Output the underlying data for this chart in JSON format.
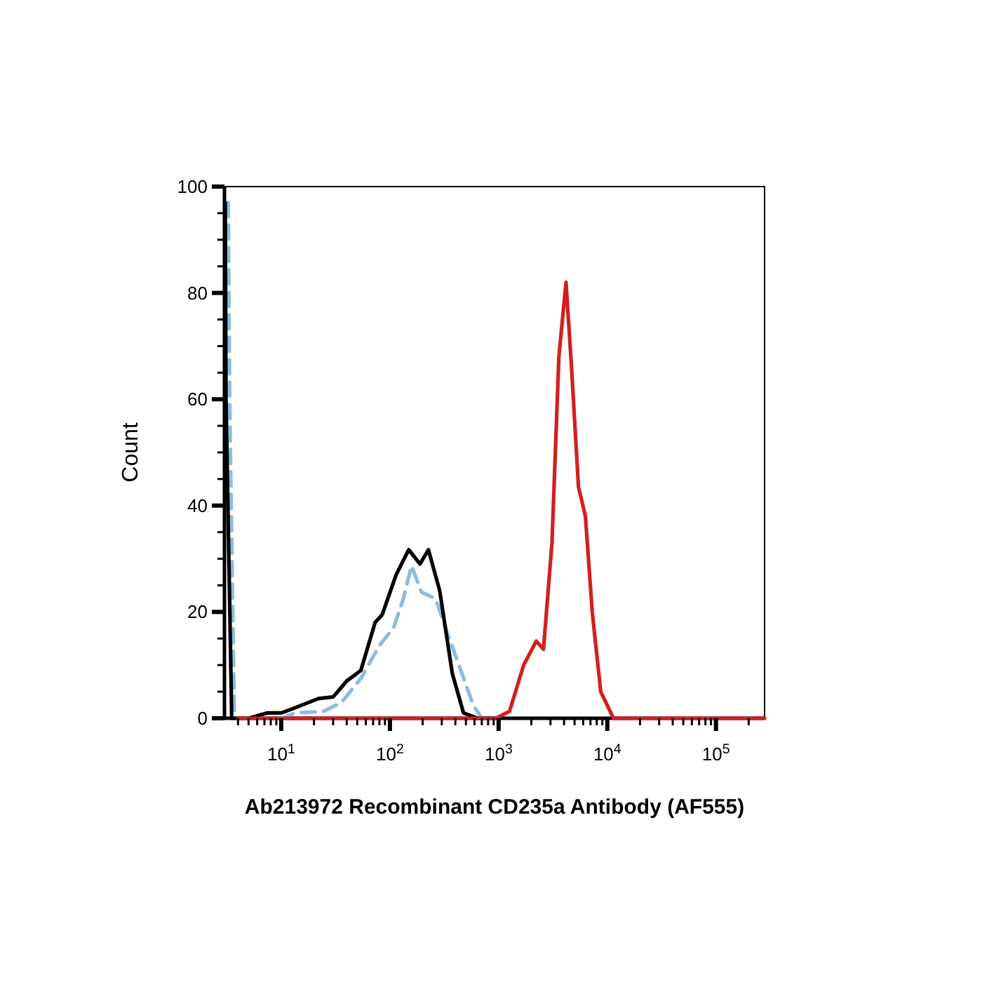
{
  "chart_data": {
    "type": "line",
    "xlabel": "Ab213972 Recombinant CD235a Antibody (AF555)",
    "ylabel": "Count",
    "log": "x",
    "grid": false,
    "marker": "none",
    "xlim": [
      3,
      280000
    ],
    "ylim": [
      0,
      100
    ],
    "xticks": [
      {
        "value": 4,
        "label": null
      },
      {
        "value": 5,
        "label": null
      },
      {
        "value": 6,
        "label": null
      },
      {
        "value": 7,
        "label": null
      },
      {
        "value": 8,
        "label": null
      },
      {
        "value": 9,
        "label": null
      },
      {
        "value": 10,
        "label": "10$^{1}$"
      },
      {
        "value": 20,
        "label": null
      },
      {
        "value": 30,
        "label": null
      },
      {
        "value": 40,
        "label": null
      },
      {
        "value": 50,
        "label": null
      },
      {
        "value": 60,
        "label": null
      },
      {
        "value": 70,
        "label": null
      },
      {
        "value": 80,
        "label": null
      },
      {
        "value": 90,
        "label": null
      },
      {
        "value": 100,
        "label": "10$^{2}$"
      },
      {
        "value": 200,
        "label": null
      },
      {
        "value": 300,
        "label": null
      },
      {
        "value": 400,
        "label": null
      },
      {
        "value": 500,
        "label": null
      },
      {
        "value": 600,
        "label": null
      },
      {
        "value": 700,
        "label": null
      },
      {
        "value": 800,
        "label": null
      },
      {
        "value": 900,
        "label": null
      },
      {
        "value": 1000,
        "label": "10$^{3}$"
      },
      {
        "value": 2000,
        "label": null
      },
      {
        "value": 3000,
        "label": null
      },
      {
        "value": 4000,
        "label": null
      },
      {
        "value": 5000,
        "label": null
      },
      {
        "value": 6000,
        "label": null
      },
      {
        "value": 7000,
        "label": null
      },
      {
        "value": 8000,
        "label": null
      },
      {
        "value": 9000,
        "label": null
      },
      {
        "value": 10000,
        "label": "10$^{4}$"
      },
      {
        "value": 20000,
        "label": null
      },
      {
        "value": 30000,
        "label": null
      },
      {
        "value": 40000,
        "label": null
      },
      {
        "value": 50000,
        "label": null
      },
      {
        "value": 60000,
        "label": null
      },
      {
        "value": 70000,
        "label": null
      },
      {
        "value": 80000,
        "label": null
      },
      {
        "value": 90000,
        "label": null
      },
      {
        "value": 100000,
        "label": "10$^{5}$"
      },
      {
        "value": 200000,
        "label": null
      }
    ],
    "yticks": [
      0,
      {
        "value": 5,
        "label": null
      },
      {
        "value": 10,
        "label": null
      },
      {
        "value": 15,
        "label": null
      },
      20,
      {
        "value": 25,
        "label": null
      },
      {
        "value": 30,
        "label": null
      },
      {
        "value": 35,
        "label": null
      },
      40,
      {
        "value": 45,
        "label": null
      },
      {
        "value": 50,
        "label": null
      },
      {
        "value": 55,
        "label": null
      },
      60,
      {
        "value": 65,
        "label": null
      },
      {
        "value": 70,
        "label": null
      },
      {
        "value": 75,
        "label": null
      },
      80,
      {
        "value": 85,
        "label": null
      },
      {
        "value": 90,
        "label": null
      },
      {
        "value": 95,
        "label": null
      },
      100
    ],
    "series": [
      {
        "color": "#d21f1f",
        "line_style": "solid",
        "x": [
          4,
          942,
          1259,
          1698,
          2217,
          2587,
          3097,
          3586,
          4170,
          4670,
          5430,
          6290,
          7270,
          8700,
          11400,
          280000
        ],
        "values": [
          0,
          0,
          1.3,
          10,
          14.5,
          13,
          33,
          68,
          82,
          66.5,
          43.5,
          38,
          20,
          5,
          0,
          0
        ]
      },
      {
        "color": "#000000",
        "line_style": "solid",
        "x": [
          3.05,
          3.1,
          3.5,
          5,
          7.4,
          10,
          13.5,
          22,
          30,
          40,
          54,
          73,
          85,
          114,
          149,
          189,
          226,
          287,
          375,
          475,
          640,
          1000
        ],
        "values": [
          97,
          60,
          0,
          0,
          1,
          1,
          2,
          3.7,
          4,
          7,
          9,
          18,
          19.5,
          27,
          31.7,
          29,
          31.7,
          24,
          8.4,
          1,
          0,
          0
        ]
      },
      {
        "color": "#8bbde3",
        "line_style": "dashed",
        "x": [
          3.25,
          3.35,
          3.7,
          10,
          13.5,
          24.4,
          35.9,
          54,
          80,
          108,
          133,
          158,
          195,
          263,
          333,
          475,
          585,
          700
        ],
        "values": [
          97,
          60,
          0,
          0,
          1,
          1.3,
          3,
          7.5,
          13.7,
          17,
          22.5,
          28.7,
          23.7,
          22.5,
          16.4,
          7.6,
          2.4,
          0
        ]
      }
    ]
  }
}
